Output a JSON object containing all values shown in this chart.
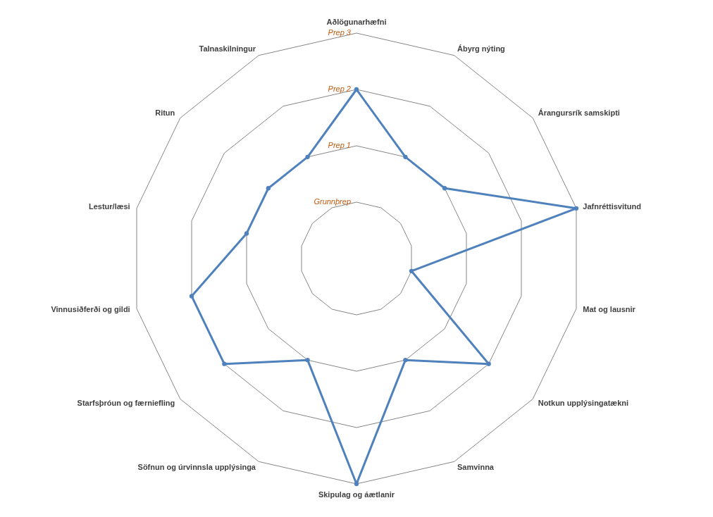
{
  "chart_data": {
    "type": "radar",
    "categories": [
      "Aðlögunarhæfni",
      "Ábyrg nýting",
      "Árangursrík samskipti",
      "Jafnréttisvitund",
      "Mat og lausnir",
      "Notkun upplýsingatækni",
      "Samvinna",
      "Skipulag og áætlanir",
      "Söfnun og úrvinnsla upplýsinga",
      "Starfsþróun og færniefling",
      "Vinnusiðferði og gildi",
      "Lestur/læsi",
      "Ritun",
      "Talnaskilningur"
    ],
    "series": [
      {
        "color": "#4f81bd",
        "values": [
          3,
          2,
          2,
          4,
          1,
          3,
          2,
          4,
          2,
          3,
          3,
          2,
          2,
          2
        ]
      }
    ],
    "ylim": [
      0,
      4
    ],
    "yticks": [
      {
        "value": 1,
        "label": "Grunnþrep"
      },
      {
        "value": 2,
        "label": "Prep 1"
      },
      {
        "value": 3,
        "label": "Prep 2"
      },
      {
        "value": 4,
        "label": "Prep 3"
      }
    ],
    "grid": true,
    "marker": "circle",
    "line_style": "solid"
  }
}
